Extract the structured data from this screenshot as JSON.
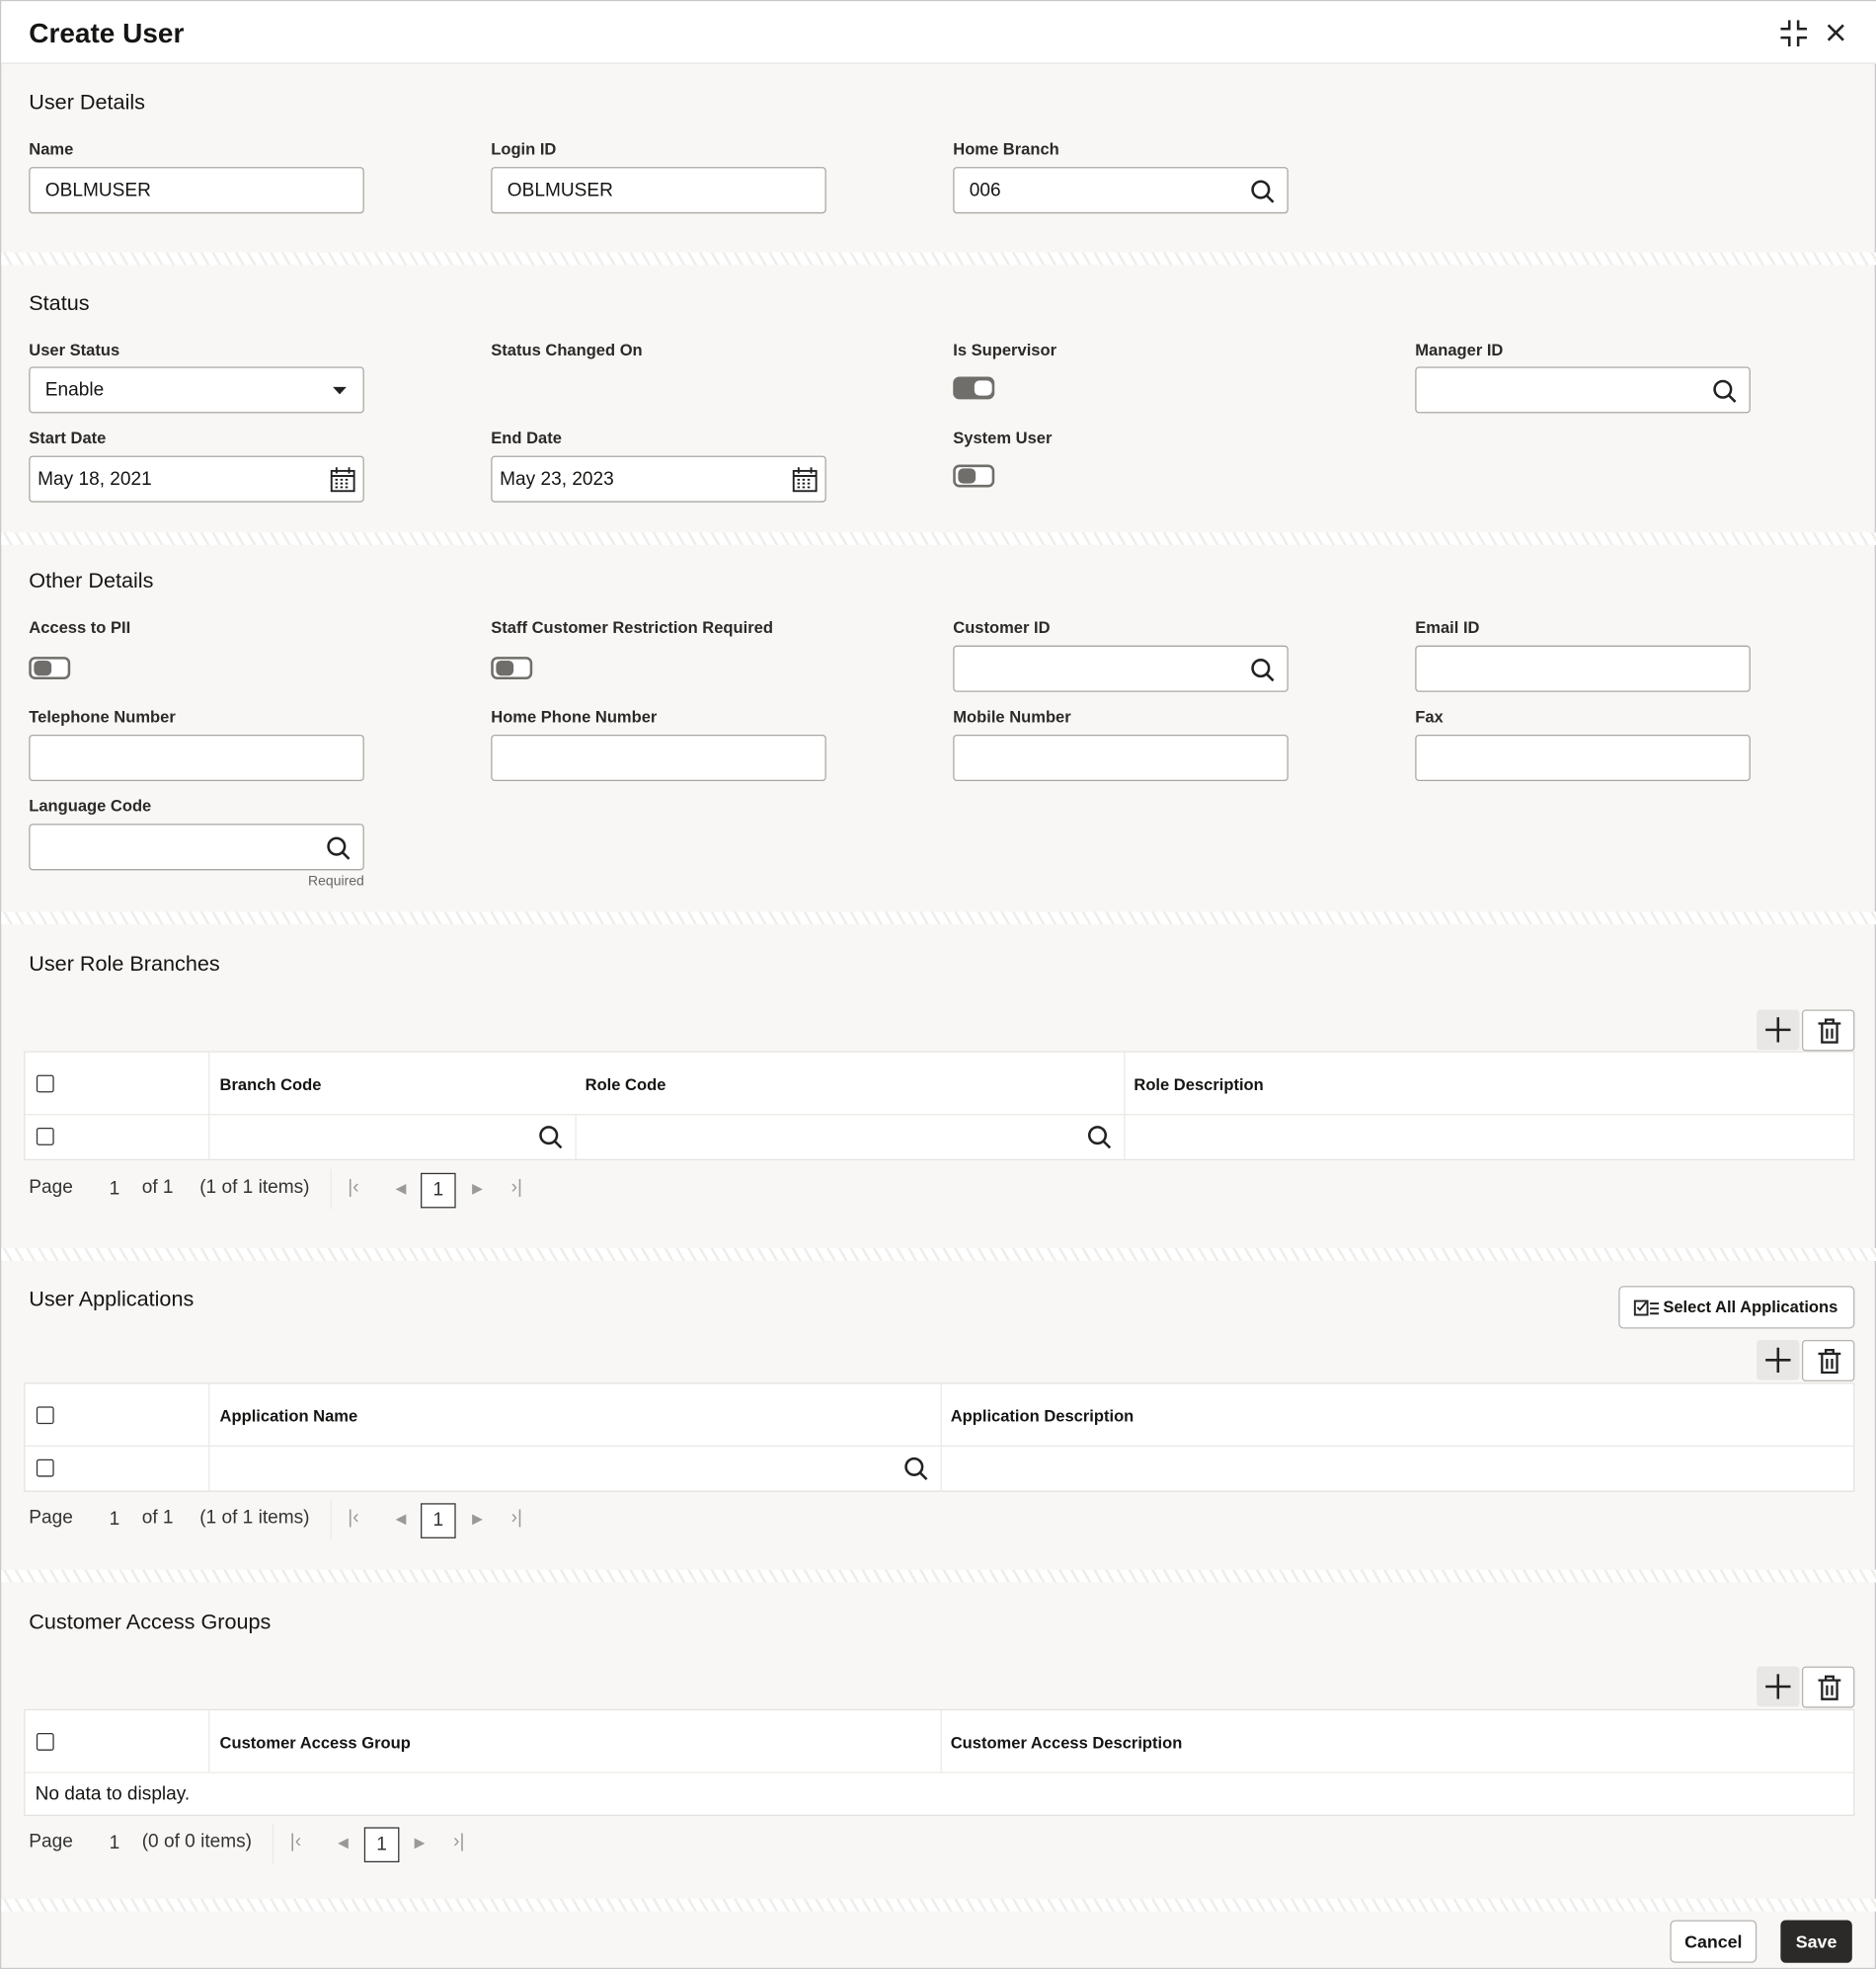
{
  "header": {
    "title": "Create User",
    "icons": [
      "compress-icon",
      "close-icon"
    ]
  },
  "user_details": {
    "heading": "User Details",
    "name_label": "Name",
    "name_value": "OBLMUSER",
    "login_label": "Login ID",
    "login_value": "OBLMUSER",
    "branch_label": "Home Branch",
    "branch_value": "006"
  },
  "status": {
    "heading": "Status",
    "user_status_label": "User Status",
    "user_status_value": "Enable",
    "changed_label": "Status Changed On",
    "supervisor_label": "Is Supervisor",
    "supervisor_on": true,
    "manager_label": "Manager ID",
    "start_label": "Start Date",
    "start_value": "May 18, 2021",
    "end_label": "End Date",
    "end_value": "May 23, 2023",
    "system_label": "System User",
    "system_on": false
  },
  "other": {
    "heading": "Other Details",
    "pii_label": "Access to PII",
    "pii_on": false,
    "staff_label": "Staff Customer Restriction Required",
    "staff_on": false,
    "customer_label": "Customer ID",
    "email_label": "Email ID",
    "tel_label": "Telephone Number",
    "home_label": "Home Phone Number",
    "mobile_label": "Mobile Number",
    "fax_label": "Fax",
    "lang_label": "Language Code",
    "required": "Required"
  },
  "roles": {
    "heading": "User Role Branches",
    "columns": [
      "Branch Code",
      "Role Code",
      "Role Description"
    ],
    "page_label": "Page",
    "page": "1",
    "of": "of 1",
    "items": "(1 of 1 items)",
    "current": "1"
  },
  "apps": {
    "heading": "User Applications",
    "select_all": "Select All Applications",
    "columns": [
      "Application Name",
      "Application Description"
    ],
    "page_label": "Page",
    "page": "1",
    "of": "of 1",
    "items": "(1 of 1 items)",
    "current": "1"
  },
  "groups": {
    "heading": "Customer Access Groups",
    "columns": [
      "Customer Access Group",
      "Customer Access Description"
    ],
    "empty": "No data to display.",
    "page_label": "Page",
    "page": "1",
    "items": "(0 of 0 items)",
    "current": "1"
  },
  "footer": {
    "cancel": "Cancel",
    "save": "Save"
  }
}
